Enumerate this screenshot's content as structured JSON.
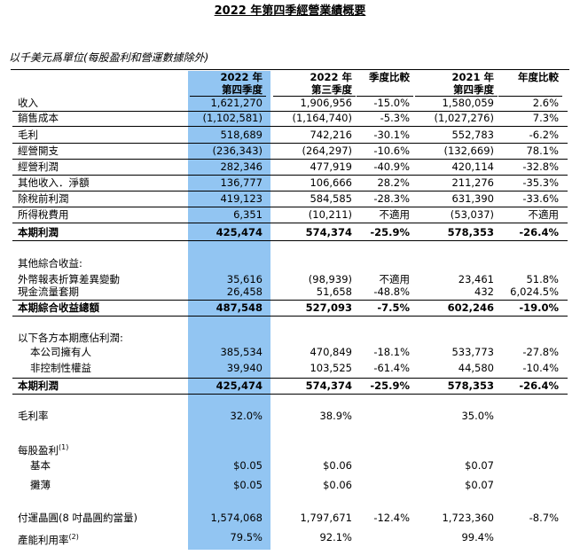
{
  "header": {
    "title": "2022 年第四季經營業績概要",
    "subtitle": "以千美元爲單位(每股盈利和營運數據除外)"
  },
  "table": {
    "columns": [
      [
        "2022 年",
        "第四季度"
      ],
      [
        "2022 年",
        "第三季度"
      ],
      [
        "季度比較"
      ],
      [
        "2021 年",
        "第四季度"
      ],
      [
        "年度比較"
      ]
    ],
    "rows": [
      {
        "cells": [
          "收入",
          "1,621,270",
          "1,906,956",
          "-15.0%",
          "1,580,059",
          "2.6%"
        ]
      },
      {
        "cells": [
          "銷售成本",
          "(1,102,581)",
          "(1,164,740)",
          "-5.3%",
          "(1,027,276)",
          "7.3%"
        ]
      },
      {
        "cells": [
          "毛利",
          "518,689",
          "742,216",
          "-30.1%",
          "552,783",
          "-6.2%"
        ]
      },
      {
        "cells": [
          "經營開支",
          "(236,343)",
          "(264,297)",
          "-10.6%",
          "(132,669)",
          "78.1%"
        ]
      },
      {
        "cells": [
          "經營利潤",
          "282,346",
          "477,919",
          "-40.9%",
          "420,114",
          "-32.8%"
        ]
      },
      {
        "cells": [
          "其他收入．淨額",
          "136,777",
          "106,666",
          "28.2%",
          "211,276",
          "-35.3%"
        ]
      },
      {
        "cells": [
          "除稅前利潤",
          "419,123",
          "584,585",
          "-28.3%",
          "631,390",
          "-33.6%"
        ]
      },
      {
        "cells": [
          "所得稅費用",
          "6,351",
          "(10,211)",
          "不適用",
          "(53,037)",
          "不適用"
        ]
      },
      {
        "cells": [
          "本期利潤",
          "425,474",
          "574,374",
          "-25.9%",
          "578,353",
          "-26.4%"
        ],
        "bold": true
      },
      {
        "cells": [
          "其他綜合收益:",
          null,
          null,
          null,
          null,
          null
        ]
      },
      {
        "cells": [
          "外幣報表折算差異變動",
          "35,616",
          "(98,939)",
          "不適用",
          "23,461",
          "51.8%"
        ]
      },
      {
        "cells": [
          "現金流量套期",
          "26,458",
          "51,658",
          "-48.8%",
          "432",
          "6,024.5%"
        ]
      },
      {
        "cells": [
          "本期綜合收益總額",
          "487,548",
          "527,093",
          "-7.5%",
          "602,246",
          "-19.0%"
        ],
        "bold": true
      },
      {
        "cells": [
          "以下各方本期應佔利潤:",
          null,
          null,
          null,
          null,
          null
        ]
      },
      {
        "cells": [
          "本公司擁有人",
          "385,534",
          "470,849",
          "-18.1%",
          "533,773",
          "-27.8%"
        ],
        "indent": true
      },
      {
        "cells": [
          "非控制性權益",
          "39,940",
          "103,525",
          "-61.4%",
          "44,580",
          "-10.4%"
        ],
        "indent": true
      },
      {
        "cells": [
          "本期利潤",
          "425,474",
          "574,374",
          "-25.9%",
          "578,353",
          "-26.4%"
        ],
        "bold": true
      },
      {
        "cells": [
          "毛利率",
          "32.0%",
          "38.9%",
          null,
          "35.0%",
          null
        ]
      },
      {
        "cells": [
          "每股盈利",
          null,
          null,
          null,
          null,
          null
        ],
        "note": "(1)"
      },
      {
        "cells": [
          "基本",
          "$0.05",
          "$0.06",
          null,
          "$0.07",
          null
        ],
        "indent": true
      },
      {
        "cells": [
          "攤薄",
          "$0.05",
          "$0.06",
          null,
          "$0.07",
          null
        ],
        "indent": true
      },
      {
        "cells": [
          "付運晶圓(8 吋晶圓約當量)",
          "1,574,068",
          "1,797,671",
          "-12.4%",
          "1,723,360",
          "-8.7%"
        ]
      },
      {
        "cells": [
          "產能利用率",
          "79.5%",
          "92.1%",
          null,
          "99.4%",
          null
        ],
        "note": "(2)"
      }
    ]
  }
}
